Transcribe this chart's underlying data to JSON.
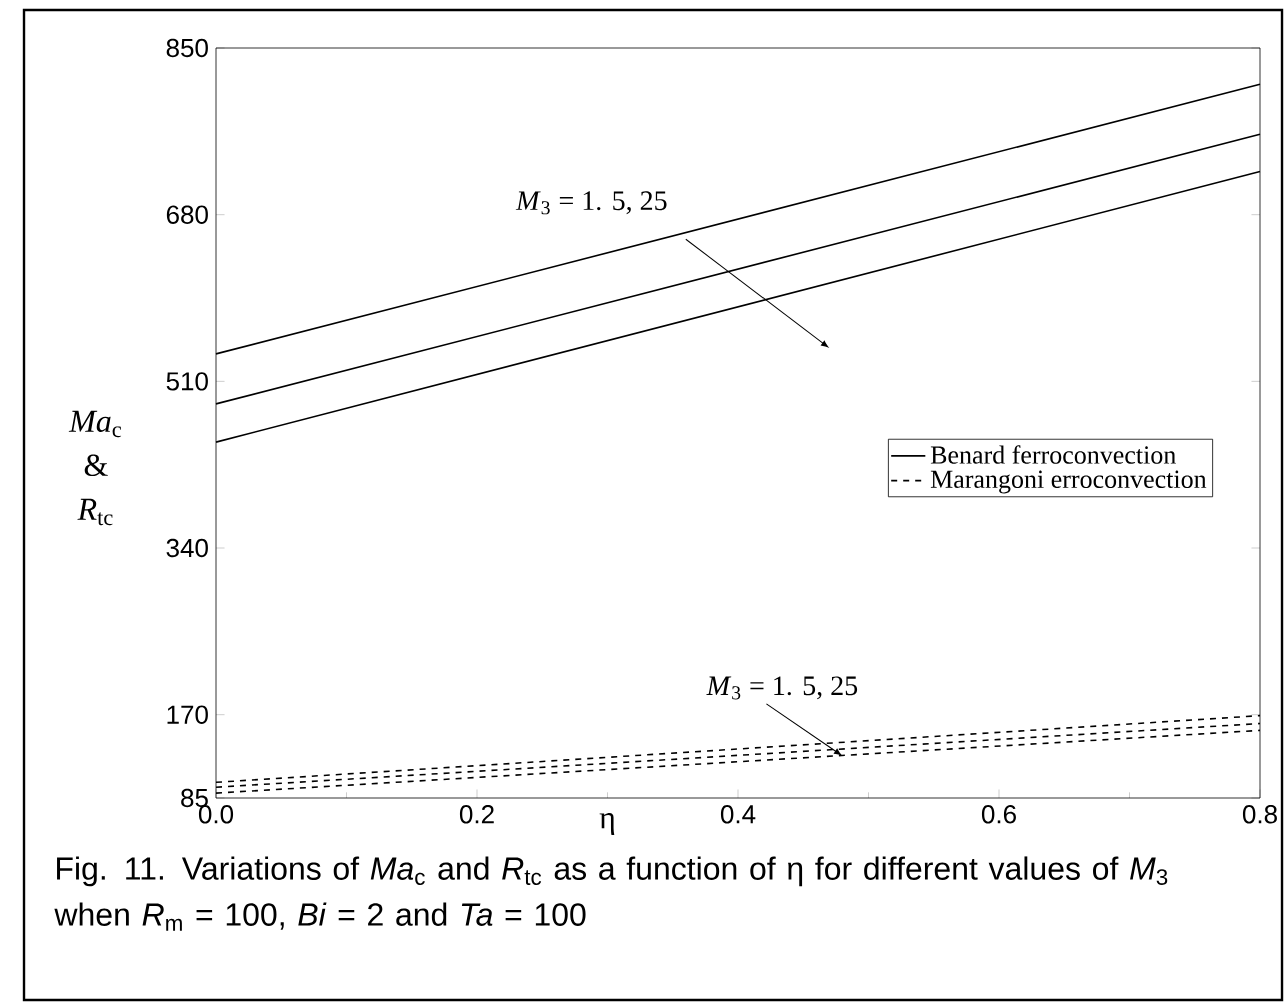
{
  "chart_data": {
    "type": "line",
    "xlabel": "η",
    "ylabel": "*Ma*$_{c}$ & *R*$_{tc}$",
    "x": [
      0,
      0.8
    ],
    "series": [
      {
        "name": "Benard ferroconvection",
        "color": "#000000",
        "line_style": "solid",
        "values": [
          538,
          813
        ]
      },
      {
        "color": "#000000",
        "line_style": "solid",
        "values": [
          487,
          762
        ]
      },
      {
        "color": "#000000",
        "line_style": "solid",
        "values": [
          448,
          724
        ]
      },
      {
        "name": "Marangoni erroconvection",
        "color": "#000000",
        "line_style": "dashed",
        "values": [
          101,
          169
        ]
      },
      {
        "color": "#000000",
        "line_style": "dashed",
        "values": [
          96,
          161
        ]
      },
      {
        "color": "#000000",
        "line_style": "dashed",
        "values": [
          90,
          154
        ]
      }
    ],
    "xlim": [
      0,
      0.8
    ],
    "ylim": [
      85,
      850
    ],
    "xticks": [
      {
        "value": 0,
        "label": "0.0"
      },
      0.2,
      0.4,
      0.6,
      0.8
    ],
    "yticks": [
      85,
      170,
      340,
      510,
      680,
      850
    ],
    "legend": "right",
    "annotations": [
      "*M*$_{3}$ = 1. 5, 25",
      {
        "text": "*M*$_{3}$ = 1. 5, 25",
        "x": 0.48,
        "y": 128
      },
      "Fig. 11. Variations of *Ma*$_{c}$ and *R*$_{tc}$ as a function of η for different values of *M*$_{3}$ when *R*$_{m}$ = 100, *Bi* = 2 and *Ta* = 100"
    ]
  }
}
